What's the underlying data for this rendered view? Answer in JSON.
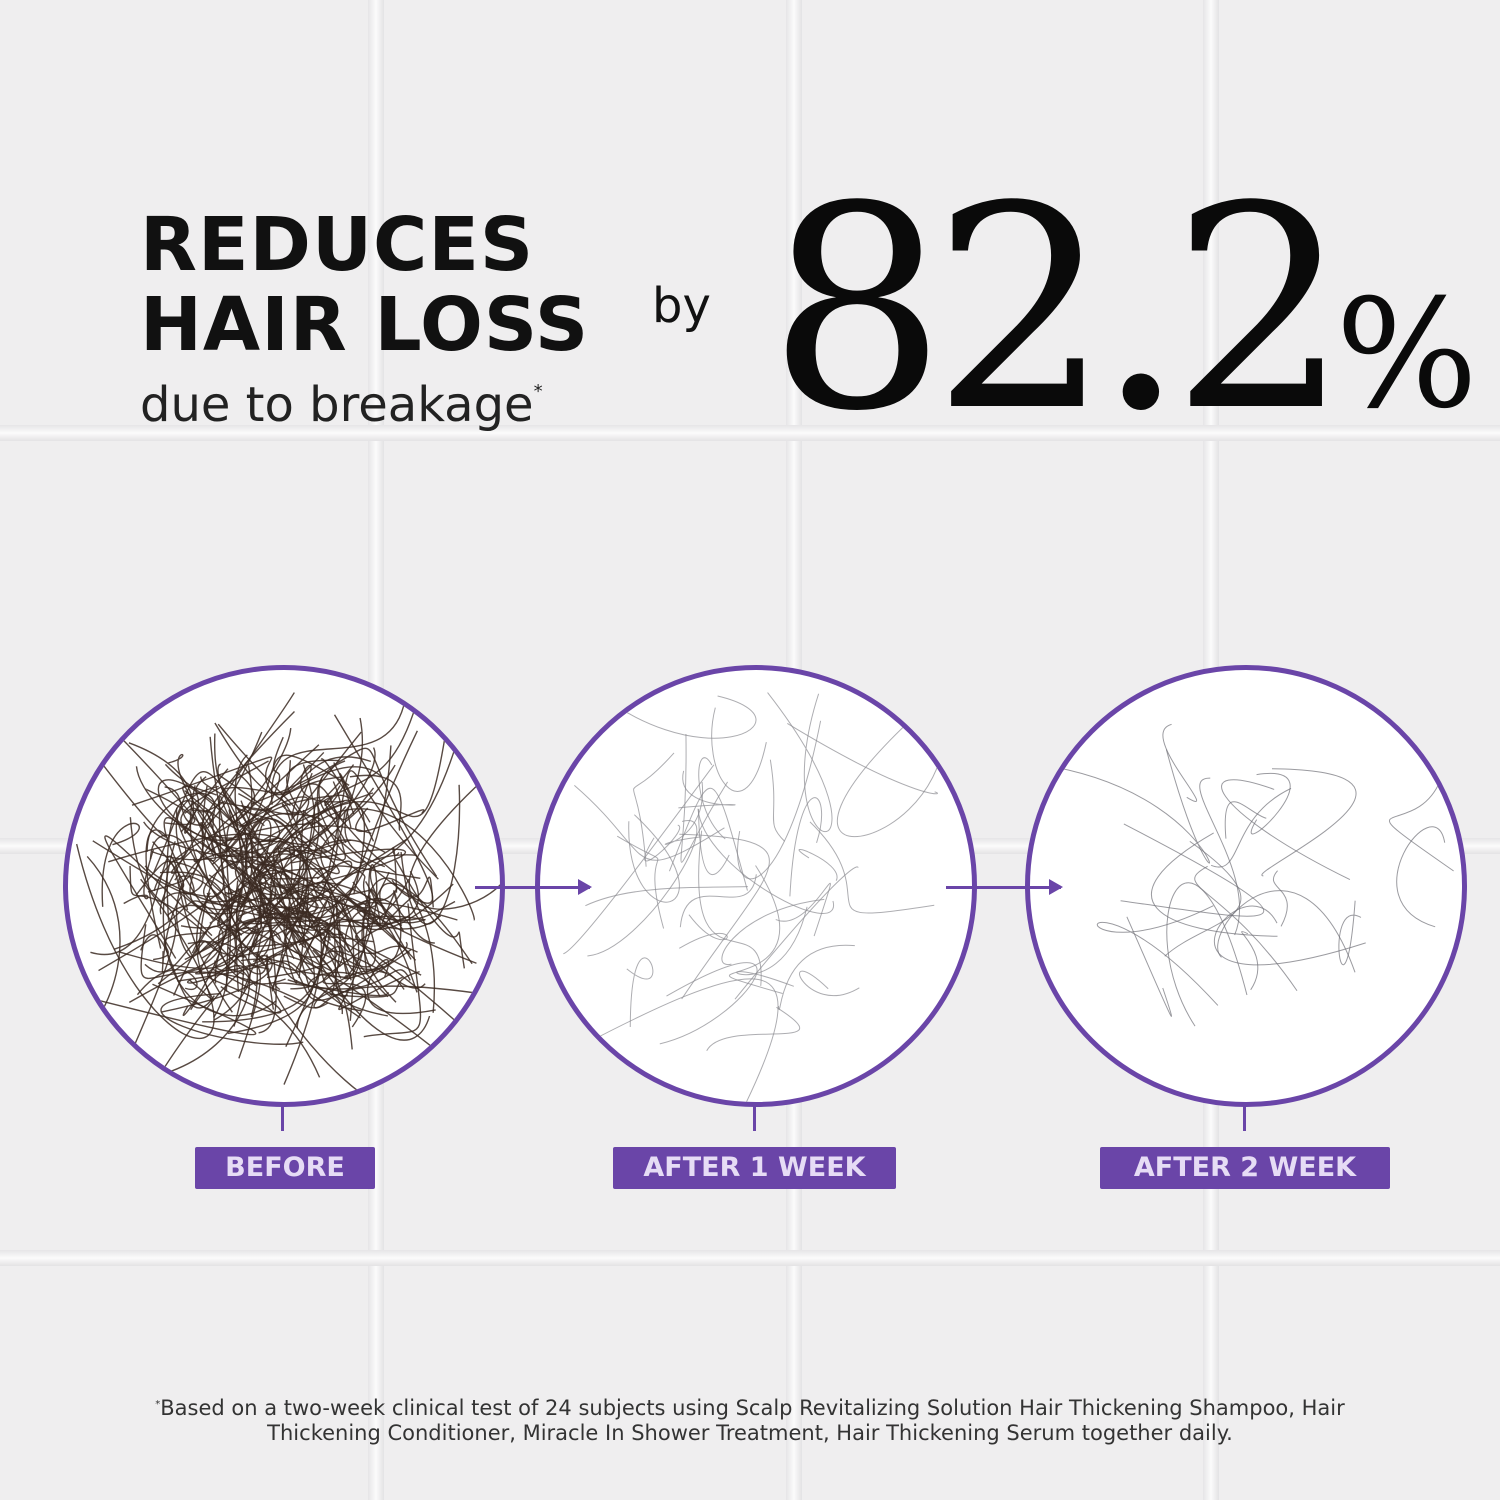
{
  "headline": {
    "line1": "REDUCES",
    "line2": "HAIR LOSS",
    "sub": "due to breakage",
    "asterisk": "*",
    "by": "by",
    "stat": "82.2",
    "percent": "%"
  },
  "stages": [
    {
      "label": "BEFORE",
      "hair_density": "high",
      "hair_color": "#3b2a22"
    },
    {
      "label": "AFTER 1 WEEK",
      "hair_density": "medium",
      "hair_color": "#8a8a90"
    },
    {
      "label": "AFTER 2 WEEK",
      "hair_density": "low",
      "hair_color": "#707078"
    }
  ],
  "footnote": {
    "asterisk": "*",
    "text": "Based on a two-week clinical test of 24 subjects using Scalp Revitalizing Solution Hair Thickening Shampoo, Hair Thickening Conditioner, Miracle In Shower Treatment, Hair Thickening Serum together daily."
  },
  "colors": {
    "accent": "#6a45a8",
    "label_text": "#e6dcf5"
  }
}
